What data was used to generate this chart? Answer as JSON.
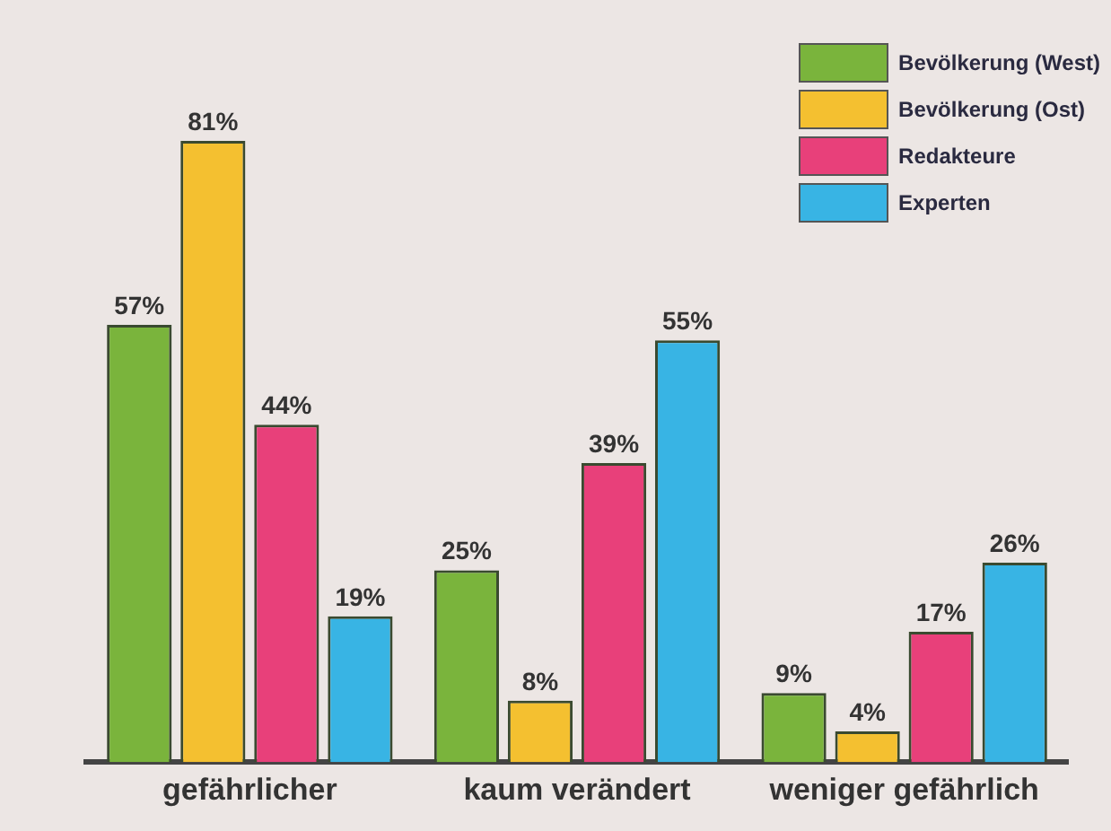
{
  "chart_data": {
    "type": "bar",
    "categories": [
      "gefährlicher",
      "kaum verändert",
      "weniger gefährlich"
    ],
    "relative": false,
    "legend": "top right",
    "series": [
      {
        "name": "Bevölkerung (West)",
        "color": "#7ab43c",
        "values": [
          57,
          25,
          9
        ],
        "value_labels": [
          "57%",
          "25%",
          "9%"
        ]
      },
      {
        "name": "Bevölkerung (Ost)",
        "color": "#f4c030",
        "values": [
          81,
          8,
          4
        ],
        "value_labels": [
          "81%",
          "8%",
          "4%"
        ]
      },
      {
        "name": "Redakteure",
        "color": "#e8407a",
        "values": [
          44,
          39,
          17
        ],
        "value_labels": [
          "44%",
          "39%",
          "17%"
        ]
      },
      {
        "name": "Experten",
        "color": "#38b4e4",
        "values": [
          19,
          55,
          26
        ],
        "value_labels": [
          "19%",
          "55%",
          "26%"
        ]
      }
    ]
  }
}
